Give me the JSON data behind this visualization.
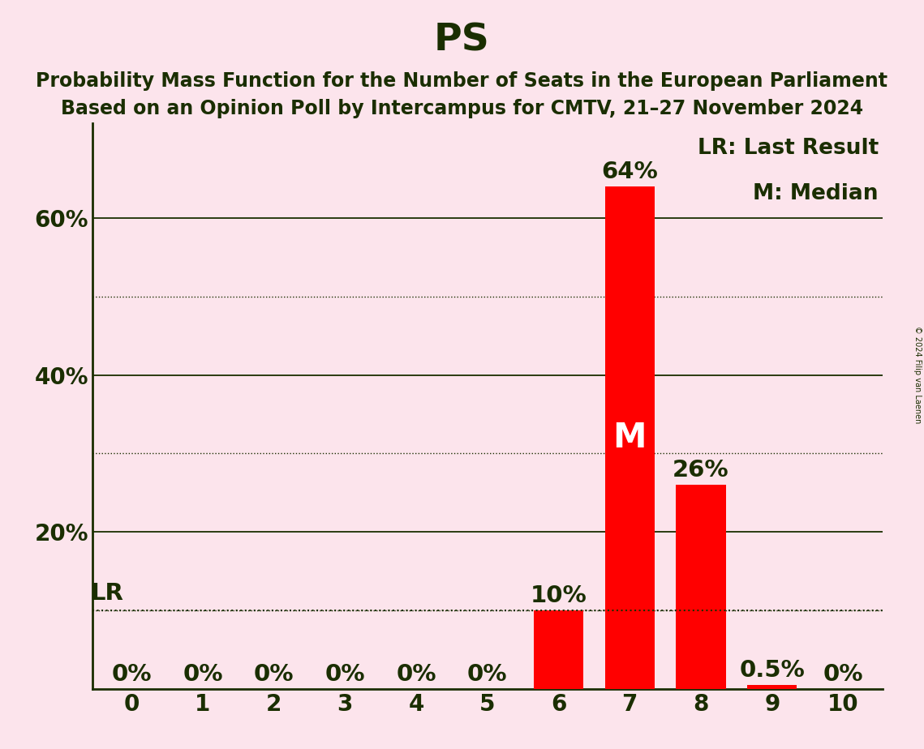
{
  "title": "PS",
  "subtitle1": "Probability Mass Function for the Number of Seats in the European Parliament",
  "subtitle2": "Based on an Opinion Poll by Intercampus for CMTV, 21–27 November 2024",
  "copyright": "© 2024 Filip van Laenen",
  "categories": [
    0,
    1,
    2,
    3,
    4,
    5,
    6,
    7,
    8,
    9,
    10
  ],
  "values": [
    0.0,
    0.0,
    0.0,
    0.0,
    0.0,
    0.0,
    0.1,
    0.64,
    0.26,
    0.005,
    0.0
  ],
  "bar_color": "#ff0000",
  "background_color": "#fce4ec",
  "text_color": "#1a2e00",
  "bar_labels": [
    "0%",
    "0%",
    "0%",
    "0%",
    "0%",
    "0%",
    "10%",
    "64%",
    "26%",
    "0.5%",
    "0%"
  ],
  "median_bar": 7,
  "last_result_line": 0.1,
  "legend_lr": "LR: Last Result",
  "legend_m": "M: Median",
  "lr_label": "LR",
  "m_label": "M",
  "ylim": [
    0,
    0.72
  ],
  "yticks": [
    0.2,
    0.4,
    0.6
  ],
  "ytick_labels": [
    "20%",
    "40%",
    "60%"
  ],
  "dotted_yticks": [
    0.1,
    0.3,
    0.5
  ],
  "solid_yticks": [
    0.2,
    0.4,
    0.6
  ],
  "title_fontsize": 34,
  "subtitle_fontsize": 17,
  "tick_fontsize": 20,
  "annotation_fontsize": 21,
  "legend_fontsize": 19,
  "m_fontsize": 30
}
